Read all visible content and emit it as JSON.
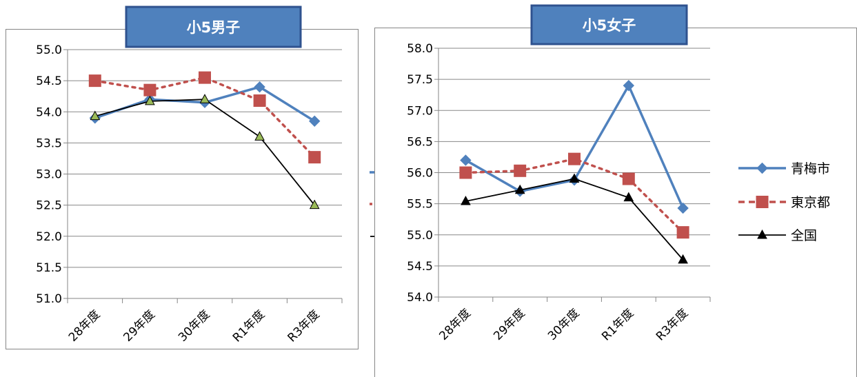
{
  "chart_data": [
    {
      "type": "line",
      "title": "小5男子",
      "categories": [
        "28年度",
        "29年度",
        "30年度",
        "R1年度",
        "R3年度"
      ],
      "ylim": [
        51.0,
        55.0
      ],
      "yticks": [
        "51.0",
        "51.5",
        "52.0",
        "52.5",
        "53.0",
        "53.5",
        "54.0",
        "54.5",
        "55.0"
      ],
      "grid": true,
      "series": [
        {
          "name": "青梅市",
          "values": [
            53.9,
            54.2,
            54.15,
            54.4,
            53.85
          ]
        },
        {
          "name": "東京都",
          "values": [
            54.5,
            54.35,
            54.55,
            54.18,
            53.27
          ]
        },
        {
          "name": "全国",
          "values": [
            53.93,
            54.17,
            54.2,
            53.6,
            52.5
          ]
        }
      ]
    },
    {
      "type": "line",
      "title": "小5女子",
      "categories": [
        "28年度",
        "29年度",
        "30年度",
        "R1年度",
        "R3年度"
      ],
      "ylim": [
        54.0,
        58.0
      ],
      "yticks": [
        "54.0",
        "54.5",
        "55.0",
        "55.5",
        "56.0",
        "56.5",
        "57.0",
        "57.5",
        "58.0"
      ],
      "grid": true,
      "legend_position": "right",
      "series": [
        {
          "name": "青梅市",
          "values": [
            56.2,
            55.7,
            55.88,
            57.4,
            55.43
          ]
        },
        {
          "name": "東京都",
          "values": [
            56.0,
            56.03,
            56.22,
            55.9,
            55.04
          ]
        },
        {
          "name": "全国",
          "values": [
            55.54,
            55.72,
            55.9,
            55.6,
            54.6
          ]
        }
      ]
    }
  ],
  "colors": {
    "series_blue": "#4F81BD",
    "series_red": "#C0504D",
    "series_black": "#000000",
    "title_fill": "#4F81BD",
    "title_border": "#2F528F",
    "grid": "#878787",
    "frame": "#868686",
    "triangle_fill_boys": "#9BBB59"
  }
}
